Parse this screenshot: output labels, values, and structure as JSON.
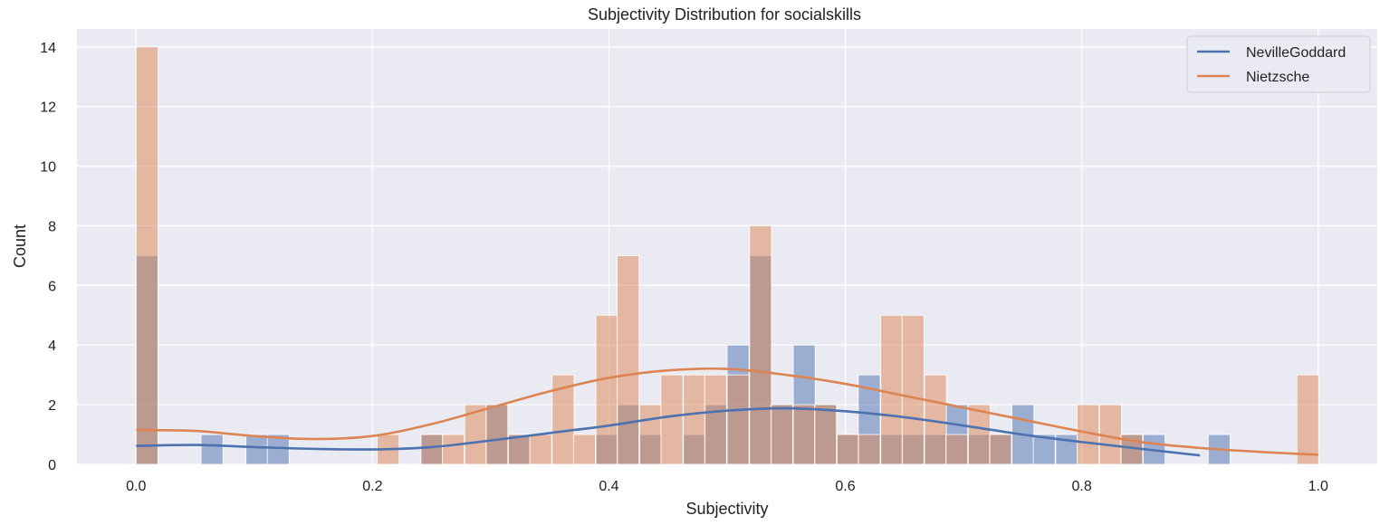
{
  "chart_data": {
    "type": "histogram",
    "title": "Subjectivity Distribution for socialskills",
    "xlabel": "Subjectivity",
    "ylabel": "Count",
    "xlim": [
      -0.05,
      1.05
    ],
    "ylim": [
      0,
      14.6
    ],
    "x_ticks": [
      "0.0",
      "0.2",
      "0.4",
      "0.6",
      "0.8",
      "1.0"
    ],
    "y_ticks": [
      "0",
      "2",
      "4",
      "6",
      "8",
      "10",
      "12",
      "14"
    ],
    "grid": true,
    "legend_position": "top-right",
    "series": [
      {
        "name": "NevilleGoddard",
        "color": "#4c72b0",
        "bin_width": 0.0185,
        "bins": [
          {
            "x": 0.0,
            "count": 7
          },
          {
            "x": 0.055,
            "count": 1
          },
          {
            "x": 0.093,
            "count": 1
          },
          {
            "x": 0.111,
            "count": 1
          },
          {
            "x": 0.241,
            "count": 1
          },
          {
            "x": 0.296,
            "count": 2
          },
          {
            "x": 0.315,
            "count": 1
          },
          {
            "x": 0.389,
            "count": 1
          },
          {
            "x": 0.407,
            "count": 2
          },
          {
            "x": 0.426,
            "count": 1
          },
          {
            "x": 0.463,
            "count": 1
          },
          {
            "x": 0.481,
            "count": 2
          },
          {
            "x": 0.5,
            "count": 4
          },
          {
            "x": 0.519,
            "count": 7
          },
          {
            "x": 0.537,
            "count": 2
          },
          {
            "x": 0.556,
            "count": 4
          },
          {
            "x": 0.574,
            "count": 2
          },
          {
            "x": 0.593,
            "count": 1
          },
          {
            "x": 0.611,
            "count": 3
          },
          {
            "x": 0.63,
            "count": 1
          },
          {
            "x": 0.648,
            "count": 1
          },
          {
            "x": 0.667,
            "count": 1
          },
          {
            "x": 0.685,
            "count": 2
          },
          {
            "x": 0.704,
            "count": 1
          },
          {
            "x": 0.722,
            "count": 1
          },
          {
            "x": 0.741,
            "count": 2
          },
          {
            "x": 0.759,
            "count": 1
          },
          {
            "x": 0.778,
            "count": 1
          },
          {
            "x": 0.833,
            "count": 1
          },
          {
            "x": 0.852,
            "count": 1
          },
          {
            "x": 0.907,
            "count": 1
          }
        ],
        "kde": [
          [
            0.0,
            0.62
          ],
          [
            0.05,
            0.65
          ],
          [
            0.1,
            0.58
          ],
          [
            0.15,
            0.52
          ],
          [
            0.2,
            0.5
          ],
          [
            0.25,
            0.58
          ],
          [
            0.3,
            0.8
          ],
          [
            0.35,
            1.05
          ],
          [
            0.4,
            1.3
          ],
          [
            0.45,
            1.6
          ],
          [
            0.5,
            1.8
          ],
          [
            0.55,
            1.88
          ],
          [
            0.6,
            1.78
          ],
          [
            0.65,
            1.58
          ],
          [
            0.7,
            1.3
          ],
          [
            0.75,
            1.0
          ],
          [
            0.8,
            0.75
          ],
          [
            0.85,
            0.52
          ],
          [
            0.9,
            0.3
          ]
        ]
      },
      {
        "name": "Nietzsche",
        "color": "#dd8452",
        "bin_width": 0.0185,
        "bins": [
          {
            "x": 0.0,
            "count": 14
          },
          {
            "x": 0.204,
            "count": 1
          },
          {
            "x": 0.241,
            "count": 1
          },
          {
            "x": 0.259,
            "count": 1
          },
          {
            "x": 0.278,
            "count": 2
          },
          {
            "x": 0.296,
            "count": 2
          },
          {
            "x": 0.315,
            "count": 1
          },
          {
            "x": 0.333,
            "count": 1
          },
          {
            "x": 0.352,
            "count": 3
          },
          {
            "x": 0.37,
            "count": 1
          },
          {
            "x": 0.389,
            "count": 5
          },
          {
            "x": 0.407,
            "count": 7
          },
          {
            "x": 0.426,
            "count": 2
          },
          {
            "x": 0.444,
            "count": 3
          },
          {
            "x": 0.463,
            "count": 3
          },
          {
            "x": 0.481,
            "count": 3
          },
          {
            "x": 0.5,
            "count": 3
          },
          {
            "x": 0.519,
            "count": 8
          },
          {
            "x": 0.537,
            "count": 2
          },
          {
            "x": 0.556,
            "count": 2
          },
          {
            "x": 0.574,
            "count": 2
          },
          {
            "x": 0.593,
            "count": 1
          },
          {
            "x": 0.611,
            "count": 1
          },
          {
            "x": 0.63,
            "count": 5
          },
          {
            "x": 0.648,
            "count": 5
          },
          {
            "x": 0.667,
            "count": 3
          },
          {
            "x": 0.685,
            "count": 1
          },
          {
            "x": 0.704,
            "count": 2
          },
          {
            "x": 0.722,
            "count": 1
          },
          {
            "x": 0.796,
            "count": 2
          },
          {
            "x": 0.815,
            "count": 2
          },
          {
            "x": 0.833,
            "count": 1
          },
          {
            "x": 0.982,
            "count": 3
          }
        ],
        "kde": [
          [
            0.0,
            1.15
          ],
          [
            0.05,
            1.12
          ],
          [
            0.1,
            0.95
          ],
          [
            0.15,
            0.85
          ],
          [
            0.2,
            0.95
          ],
          [
            0.25,
            1.35
          ],
          [
            0.3,
            1.9
          ],
          [
            0.35,
            2.45
          ],
          [
            0.4,
            2.9
          ],
          [
            0.45,
            3.15
          ],
          [
            0.5,
            3.2
          ],
          [
            0.55,
            3.0
          ],
          [
            0.6,
            2.7
          ],
          [
            0.65,
            2.3
          ],
          [
            0.7,
            1.9
          ],
          [
            0.75,
            1.5
          ],
          [
            0.8,
            1.1
          ],
          [
            0.85,
            0.75
          ],
          [
            0.9,
            0.55
          ],
          [
            0.95,
            0.42
          ],
          [
            1.0,
            0.32
          ]
        ]
      }
    ]
  }
}
